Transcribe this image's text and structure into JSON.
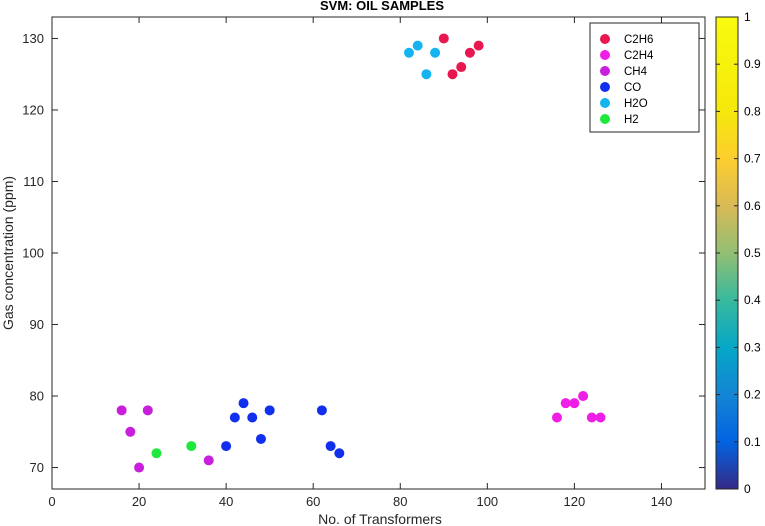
{
  "chart_data": {
    "type": "scatter",
    "title": "SVM: OIL SAMPLES",
    "xlabel": "No. of Transformers",
    "ylabel": "Gas concentration (ppm)",
    "xlim": [
      0,
      150
    ],
    "ylim": [
      67,
      133
    ],
    "xticks": [
      "0",
      "20",
      "40",
      "60",
      "80",
      "100",
      "120",
      "140"
    ],
    "yticks": [
      "70",
      "80",
      "90",
      "100",
      "110",
      "120",
      "130"
    ],
    "legend_position": "top-right",
    "series": [
      {
        "name": "C2H6",
        "color": "#e8174f",
        "points": [
          [
            90,
            130
          ],
          [
            98,
            129
          ],
          [
            96,
            128
          ],
          [
            94,
            126
          ],
          [
            92,
            125
          ]
        ]
      },
      {
        "name": "C2H4",
        "color": "#ee1ee6",
        "points": [
          [
            122,
            80
          ],
          [
            118,
            79
          ],
          [
            120,
            79
          ],
          [
            116,
            77
          ],
          [
            124,
            77
          ],
          [
            126,
            77
          ]
        ]
      },
      {
        "name": "CH4",
        "color": "#c81fdc",
        "points": [
          [
            16,
            78
          ],
          [
            22,
            78
          ],
          [
            18,
            75
          ],
          [
            20,
            70
          ],
          [
            36,
            71
          ]
        ]
      },
      {
        "name": "CO",
        "color": "#1130ee",
        "points": [
          [
            44,
            79
          ],
          [
            50,
            78
          ],
          [
            62,
            78
          ],
          [
            42,
            77
          ],
          [
            46,
            77
          ],
          [
            48,
            74
          ],
          [
            40,
            73
          ],
          [
            64,
            73
          ],
          [
            66,
            72
          ]
        ]
      },
      {
        "name": "H2O",
        "color": "#14b4f0",
        "points": [
          [
            84,
            129
          ],
          [
            82,
            128
          ],
          [
            88,
            128
          ],
          [
            86,
            125
          ]
        ]
      },
      {
        "name": "H2",
        "color": "#1ee83c",
        "points": [
          [
            32,
            73
          ],
          [
            24,
            72
          ]
        ]
      }
    ],
    "colorbar": {
      "ticks": [
        "0",
        "0.1",
        "0.2",
        "0.3",
        "0.4",
        "0.5",
        "0.6",
        "0.7",
        "0.8",
        "0.9",
        "1"
      ],
      "colormap": "parula"
    },
    "grid": false
  }
}
